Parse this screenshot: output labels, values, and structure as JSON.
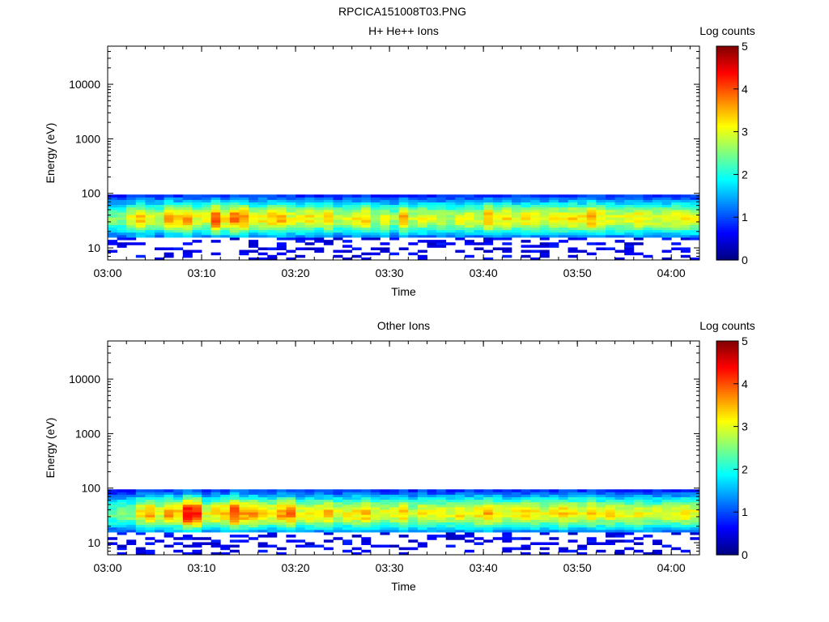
{
  "page_title": "RPCICA151008T03.PNG",
  "chart_data": [
    {
      "type": "heatmap",
      "title": "H+ He++ Ions",
      "xlabel": "Time",
      "ylabel": "Energy (eV)",
      "x_ticks": [
        "03:00",
        "03:10",
        "03:20",
        "03:30",
        "03:40",
        "03:50",
        "04:00"
      ],
      "x_range": [
        "03:00",
        "04:03"
      ],
      "y_scale": "log",
      "y_ticks": [
        "10",
        "100",
        "1000",
        "10000"
      ],
      "y_range": [
        6,
        50000
      ],
      "colorbar": {
        "label": "Log counts",
        "ticks": [
          "0",
          "1",
          "2",
          "3",
          "4",
          "5"
        ],
        "range": [
          0,
          5
        ]
      },
      "data_energy_band_eV": [
        6,
        95
      ],
      "peak_energy_eV": 35,
      "column_peak_log_counts": [
        2.5,
        2.5,
        3.0,
        3.4,
        3.0,
        2.8,
        3.6,
        3.3,
        3.6,
        3.0,
        3.0,
        4.0,
        3.3,
        3.8,
        3.6,
        3.0,
        3.2,
        3.4,
        3.5,
        3.0,
        3.0,
        3.2,
        2.9,
        3.4,
        2.8,
        3.0,
        3.1,
        3.3,
        2.8,
        3.0,
        2.6,
        3.5,
        2.8,
        3.0,
        2.9,
        2.9,
        2.7,
        3.0,
        3.1,
        2.8,
        3.6,
        3.2,
        3.2,
        3.0,
        3.2,
        3.1,
        3.0,
        3.2,
        3.1,
        3.3,
        3.2,
        3.6,
        3.2,
        3.0,
        3.0,
        3.0,
        3.2,
        3.0,
        2.9,
        3.0,
        3.1,
        3.2,
        3.0
      ],
      "grid": false
    },
    {
      "type": "heatmap",
      "title": "Other Ions",
      "xlabel": "Time",
      "ylabel": "Energy (eV)",
      "x_ticks": [
        "03:00",
        "03:10",
        "03:20",
        "03:30",
        "03:40",
        "03:50",
        "04:00"
      ],
      "x_range": [
        "03:00",
        "04:03"
      ],
      "y_scale": "log",
      "y_ticks": [
        "10",
        "100",
        "1000",
        "10000"
      ],
      "y_range": [
        6,
        50000
      ],
      "colorbar": {
        "label": "Log counts",
        "ticks": [
          "0",
          "1",
          "2",
          "3",
          "4",
          "5"
        ],
        "range": [
          0,
          5
        ]
      },
      "data_energy_band_eV": [
        6,
        95
      ],
      "peak_energy_eV": 35,
      "column_peak_log_counts": [
        2.4,
        2.5,
        2.6,
        3.2,
        3.6,
        3.0,
        3.6,
        3.4,
        4.4,
        4.2,
        3.0,
        3.3,
        3.4,
        4.1,
        3.6,
        3.6,
        3.2,
        3.2,
        3.6,
        3.8,
        3.0,
        3.2,
        3.2,
        3.4,
        3.0,
        3.1,
        3.2,
        3.4,
        3.0,
        3.0,
        3.1,
        3.3,
        2.8,
        3.2,
        3.0,
        3.1,
        3.0,
        3.2,
        3.1,
        3.2,
        3.5,
        3.2,
        3.0,
        3.1,
        3.2,
        3.2,
        3.0,
        3.1,
        3.3,
        3.2,
        3.0,
        3.4,
        3.0,
        3.2,
        3.0,
        3.0,
        3.1,
        3.0,
        2.9,
        3.0,
        3.0,
        3.2,
        3.0
      ],
      "grid": false
    }
  ]
}
